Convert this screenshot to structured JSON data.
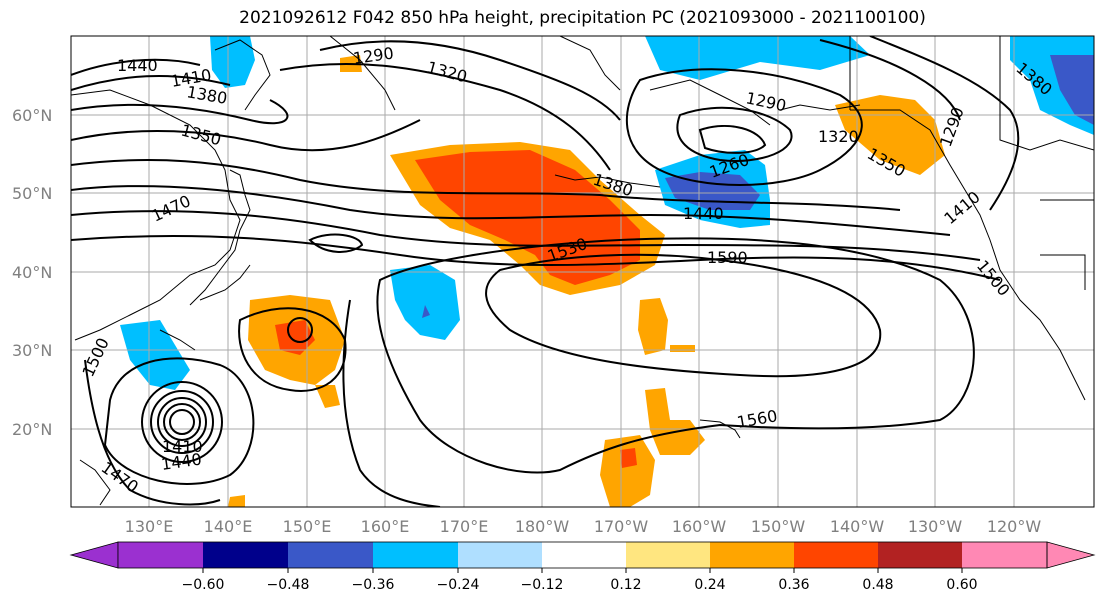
{
  "title": "2021092612 F042 850 hPa height, precipitation PC (2021093000 - 2021100100)",
  "lat_labels": [
    "60°N",
    "50°N",
    "40°N",
    "30°N",
    "20°N"
  ],
  "lon_labels": [
    "130°E",
    "140°E",
    "150°E",
    "160°E",
    "170°E",
    "180°W",
    "170°W",
    "160°W",
    "150°W",
    "140°W",
    "130°W",
    "120°W"
  ],
  "contour_labels": [
    "1440",
    "1410",
    "1380",
    "1350",
    "1290",
    "1320",
    "1290",
    "1320",
    "1260",
    "1350",
    "1290",
    "1380",
    "1440",
    "1470",
    "1530",
    "1590",
    "1500",
    "1500",
    "1560",
    "1410",
    "1440",
    "1470",
    "1380",
    "1410"
  ],
  "colorbar": {
    "colors": [
      "#9b30d0",
      "#00008b",
      "#3a58c8",
      "#00bfff",
      "#afdfff",
      "#ffffff",
      "#ffe680",
      "#ffa500",
      "#ff4500",
      "#b22222",
      "#ff88b4"
    ],
    "tick_labels": [
      "−0.60",
      "−0.48",
      "−0.36",
      "−0.24",
      "−0.12",
      "0.12",
      "0.24",
      "0.36",
      "0.48",
      "0.60"
    ]
  },
  "colors": {
    "land_outline": "#000000",
    "grid": "#aaaaaa",
    "contour": "#000000"
  }
}
